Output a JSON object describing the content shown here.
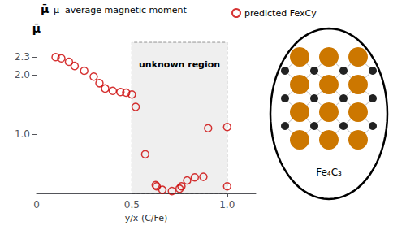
{
  "chart_data": {
    "type": "scatter",
    "x_label": "y/x (C/Fe)",
    "y_label": "μ̄",
    "series": [
      {
        "name": "predicted FexCy",
        "color": "#cc0000",
        "marker": "open circle",
        "x": [
          0.1,
          0.13,
          0.17,
          0.2,
          0.25,
          0.3,
          0.33,
          0.36,
          0.4,
          0.44,
          0.47,
          0.5,
          0.52,
          0.57,
          0.625,
          0.63,
          0.66,
          0.71,
          0.75,
          0.76,
          0.79,
          0.83,
          0.875,
          0.9,
          1.0,
          1.0
        ],
        "values": [
          2.3,
          2.28,
          2.22,
          2.15,
          2.07,
          1.97,
          1.86,
          1.77,
          1.73,
          1.71,
          1.7,
          1.67,
          1.46,
          0.66,
          0.14,
          0.12,
          0.06,
          0.04,
          0.08,
          0.12,
          0.22,
          0.27,
          0.28,
          1.1,
          1.12,
          0.12
        ]
      }
    ],
    "xlim": [
      0,
      1.15
    ],
    "ylim": [
      0,
      2.55
    ],
    "xticks": [
      0,
      0.5,
      {
        "value": 1,
        "label": "1.0"
      }
    ],
    "yticks": [
      {
        "value": 1,
        "label": "1.0"
      },
      {
        "value": 2,
        "label": "2.0"
      },
      2.3
    ],
    "grid": false,
    "legend": "top",
    "annotations": [
      {
        "text": "unknown region",
        "x": [
          0.5,
          1.0
        ],
        "color": "#d8d8d8"
      },
      {
        "text": "μ̄"
      },
      {
        "text": "μ̄  average magnetic moment"
      },
      {
        "text": "Fe₄C₃",
        "colors": [
          "#cc7700",
          "#222222"
        ]
      }
    ]
  }
}
